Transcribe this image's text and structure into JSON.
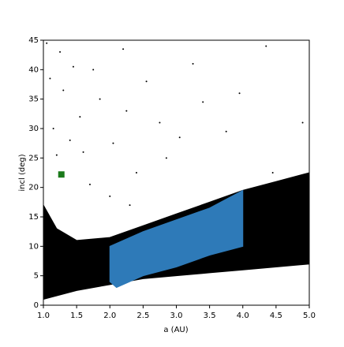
{
  "chart_data": {
    "type": "scatter",
    "xlabel": "a (AU)",
    "ylabel": "incl (deg)",
    "xlim": [
      1.0,
      5.0
    ],
    "ylim": [
      0,
      45
    ],
    "xticks": [
      {
        "value": 1.0,
        "label": "1.0"
      },
      {
        "value": 1.5,
        "label": "1.5"
      },
      {
        "value": 2.0,
        "label": "2.0"
      },
      {
        "value": 2.5,
        "label": "2.5"
      },
      {
        "value": 3.0,
        "label": "3.0"
      },
      {
        "value": 3.5,
        "label": "3.5"
      },
      {
        "value": 4.0,
        "label": "4.0"
      },
      {
        "value": 4.5,
        "label": "4.5"
      },
      {
        "value": 5.0,
        "label": "5.0"
      }
    ],
    "yticks": [
      0,
      5,
      10,
      15,
      20,
      25,
      30,
      35,
      40,
      45
    ],
    "series": [
      {
        "kind": "region",
        "color": "#000000",
        "x": [
          1.0,
          1.5,
          2.0,
          2.5,
          3.0,
          3.5,
          4.0,
          4.5,
          5.0,
          5.0,
          4.5,
          4.0,
          3.5,
          3.0,
          2.5,
          2.0,
          1.5,
          1.2,
          1.05,
          1.0
        ],
        "y": [
          1,
          2.5,
          3.5,
          4.5,
          5,
          5.5,
          6,
          6.5,
          7,
          22.5,
          21,
          19.5,
          17.5,
          15.5,
          13.5,
          11.5,
          11,
          13,
          16,
          17
        ]
      },
      {
        "kind": "points",
        "color": "#000000",
        "x": [
          1.05,
          1.1,
          1.15,
          1.25,
          1.3,
          1.45,
          1.55,
          1.6,
          1.75,
          1.85,
          2.05,
          2.2,
          2.25,
          2.4,
          2.55,
          2.75,
          2.85,
          3.05,
          3.25,
          3.4,
          3.75,
          3.95,
          4.35,
          4.45,
          4.9,
          1.2,
          1.4,
          1.7,
          2.0,
          2.3
        ],
        "y": [
          44.5,
          38.5,
          30,
          43,
          36.5,
          40.5,
          32,
          26,
          40,
          35,
          27.5,
          43.5,
          33,
          22.5,
          38,
          31,
          25,
          28.5,
          41,
          34.5,
          29.5,
          36,
          44,
          22.5,
          31,
          25.5,
          28,
          20.5,
          18.5,
          17
        ]
      },
      {
        "kind": "region",
        "color": "#2e7ab8",
        "x": [
          2.0,
          2.5,
          3.0,
          3.5,
          4.0,
          4.0,
          3.5,
          3.0,
          2.5,
          2.1,
          2.0
        ],
        "y": [
          10,
          12.5,
          14.5,
          16.5,
          19.5,
          10,
          8.5,
          6.5,
          5,
          3,
          4
        ]
      },
      {
        "kind": "marker",
        "color": "#1a7a1a",
        "x": [
          1.27
        ],
        "y": [
          22.2
        ]
      }
    ]
  }
}
